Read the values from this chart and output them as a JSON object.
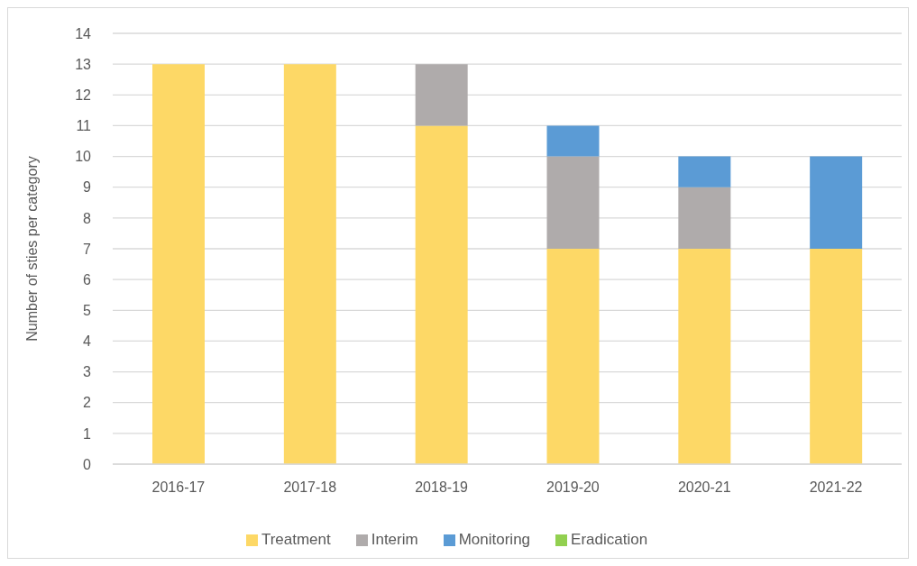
{
  "chart_data": {
    "type": "bar",
    "stacked": true,
    "ylabel": "Number of sties per category",
    "categories": [
      "2016-17",
      "2017-18",
      "2018-19",
      "2019-20",
      "2020-21",
      "2021-22"
    ],
    "series": [
      {
        "name": "Treatment",
        "color": "#fdd866",
        "values": [
          13,
          13,
          11,
          7,
          7,
          7
        ]
      },
      {
        "name": "Interim",
        "color": "#afabab",
        "values": [
          0,
          0,
          2,
          3,
          2,
          0
        ]
      },
      {
        "name": "Monitoring",
        "color": "#5b9bd5",
        "values": [
          0,
          0,
          0,
          1,
          1,
          3
        ]
      },
      {
        "name": "Eradication",
        "color": "#92d050",
        "values": [
          0,
          0,
          0,
          0,
          0,
          0
        ]
      }
    ],
    "ylim": [
      0,
      14
    ],
    "yticks": [
      0,
      1,
      2,
      3,
      4,
      5,
      6,
      7,
      8,
      9,
      10,
      11,
      12,
      13,
      14
    ],
    "grid": "y",
    "legend": "bottom"
  }
}
